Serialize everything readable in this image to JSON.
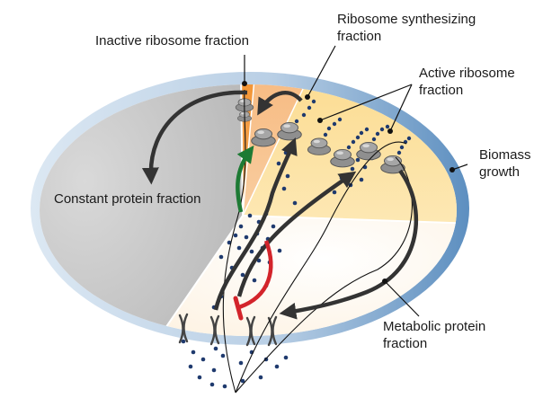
{
  "labels": {
    "inactive_ribosome_fraction": "Inactive ribosome fraction",
    "ribosome_synthesizing_fraction": [
      "Ribosome synthesizing",
      "fraction"
    ],
    "active_ribosome_fraction": [
      "Active ribosome",
      "fraction"
    ],
    "biomass_growth": [
      "Biomass",
      "growth"
    ],
    "constant_protein_fraction": "Constant protein fraction",
    "metabolic_protein_fraction": [
      "Metabolic protein",
      "fraction"
    ]
  },
  "colors": {
    "cell_rim_light": "#dce8f3",
    "cell_rim_dark": "#5d8fc0",
    "constant_fraction": "#b7b7b7",
    "inactive_ribosome": "#f28f2a",
    "ribosome_synthesizing": "#f6b67a",
    "active_ribosome": "#fbd989",
    "metabolic_fraction": "#fdf0dd",
    "ribosome_grey": "#8f8f8f",
    "nutrient_dot": "#1f3a6e",
    "arrow_dark": "#333333",
    "arrow_green": "#1d7a34",
    "inhibition_red": "#d3242b"
  }
}
